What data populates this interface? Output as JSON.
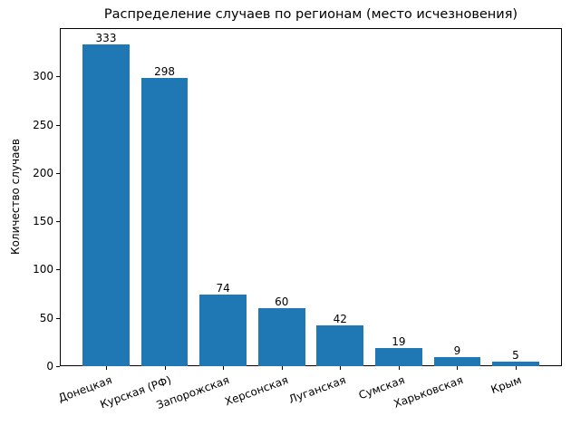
{
  "chart_data": {
    "type": "bar",
    "title": "Распределение случаев по регионам (место исчезновения)",
    "xlabel": "",
    "ylabel": "Количество случаев",
    "categories": [
      "Донецкая",
      "Курская (РФ)",
      "Запорожская",
      "Херсонская",
      "Луганская",
      "Сумская",
      "Харьковская",
      "Крым"
    ],
    "values": [
      333,
      298,
      74,
      60,
      42,
      19,
      9,
      5
    ],
    "data_labels": [
      "333",
      "298",
      "74",
      "60",
      "42",
      "19",
      "9",
      "5"
    ],
    "ylim": [
      0,
      350
    ],
    "yticks": [
      0,
      50,
      100,
      150,
      200,
      250,
      300
    ],
    "xtick_rotation": 20,
    "grid": false,
    "legend": null,
    "bar_color": "#1f77b4"
  }
}
